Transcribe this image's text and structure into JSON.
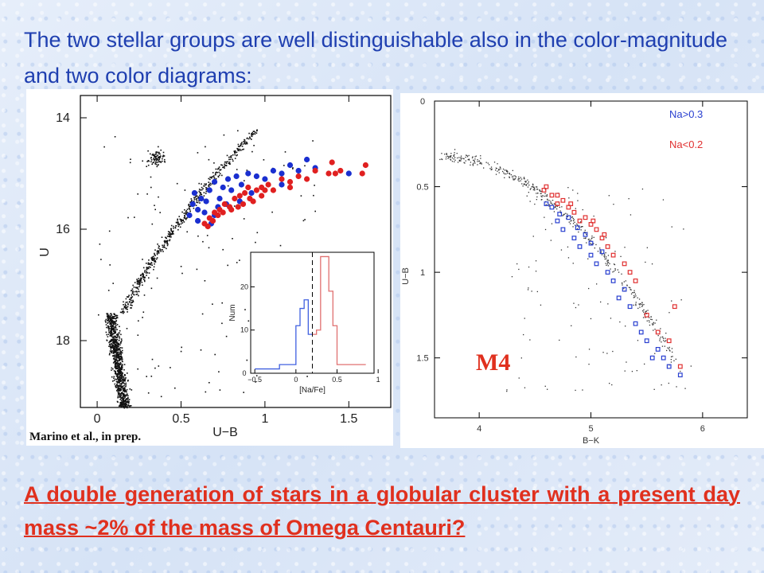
{
  "headline": "The two stellar groups are well distinguishable also in the color-magnitude and two color diagrams:",
  "conclusion": "A double generation of stars in a globular cluster with a present day mass ~2% of the mass of Omega Centauri?",
  "credit": "Marino et al., in prep.",
  "m4_label": "M4",
  "colors": {
    "headline": "#1f3fb0",
    "conclusion": "#e0301e",
    "na_high": "#1a2fd0",
    "na_low": "#e02020"
  },
  "chart_data": [
    {
      "type": "scatter",
      "xlabel": "U−B",
      "ylabel": "U",
      "xlim": [
        -0.1,
        1.75
      ],
      "ylim": [
        19.2,
        13.6
      ],
      "y_inverted": true,
      "xticks": [
        "0",
        "0.5",
        "1",
        "1.5"
      ],
      "yticks": [
        "14",
        "16",
        "18"
      ],
      "series": [
        {
          "name": "",
          "color": "#1a2fd0",
          "points": [
            [
              0.55,
              15.75
            ],
            [
              0.57,
              15.55
            ],
            [
              0.6,
              15.65
            ],
            [
              0.62,
              15.45
            ],
            [
              0.65,
              15.5
            ],
            [
              0.67,
              15.3
            ],
            [
              0.7,
              15.15
            ],
            [
              0.73,
              15.45
            ],
            [
              0.75,
              15.25
            ],
            [
              0.78,
              15.1
            ],
            [
              0.8,
              15.3
            ],
            [
              0.83,
              15.05
            ],
            [
              0.86,
              15.2
            ],
            [
              0.9,
              15.0
            ],
            [
              0.95,
              15.05
            ],
            [
              1.0,
              15.1
            ],
            [
              1.05,
              14.95
            ],
            [
              1.1,
              15.0
            ],
            [
              1.15,
              14.85
            ],
            [
              1.2,
              14.95
            ],
            [
              1.25,
              14.75
            ],
            [
              1.3,
              14.9
            ],
            [
              1.1,
              15.2
            ],
            [
              0.68,
              15.9
            ],
            [
              0.6,
              15.85
            ],
            [
              0.64,
              15.7
            ],
            [
              0.72,
              15.6
            ],
            [
              0.58,
              15.35
            ],
            [
              0.85,
              15.5
            ],
            [
              0.92,
              15.35
            ],
            [
              1.5,
              15.0
            ],
            [
              0.7,
              15.75
            ],
            [
              0.77,
              15.55
            ]
          ]
        },
        {
          "name": "",
          "color": "#e02020",
          "points": [
            [
              0.64,
              15.9
            ],
            [
              0.67,
              15.8
            ],
            [
              0.7,
              15.7
            ],
            [
              0.73,
              15.65
            ],
            [
              0.76,
              15.55
            ],
            [
              0.79,
              15.6
            ],
            [
              0.82,
              15.45
            ],
            [
              0.85,
              15.4
            ],
            [
              0.88,
              15.35
            ],
            [
              0.91,
              15.45
            ],
            [
              0.95,
              15.3
            ],
            [
              0.98,
              15.25
            ],
            [
              1.02,
              15.2
            ],
            [
              1.05,
              15.3
            ],
            [
              1.1,
              15.1
            ],
            [
              1.15,
              15.15
            ],
            [
              1.2,
              15.05
            ],
            [
              1.3,
              14.95
            ],
            [
              1.38,
              15.0
            ],
            [
              1.4,
              14.8
            ],
            [
              1.42,
              15.0
            ],
            [
              1.45,
              14.95
            ],
            [
              1.58,
              15.0
            ],
            [
              1.6,
              14.85
            ],
            [
              0.66,
              15.95
            ],
            [
              0.72,
              15.75
            ],
            [
              0.8,
              15.65
            ],
            [
              0.87,
              15.55
            ],
            [
              0.93,
              15.5
            ],
            [
              0.98,
              15.4
            ],
            [
              1.25,
              15.1
            ],
            [
              0.69,
              15.85
            ],
            [
              0.75,
              15.7
            ],
            [
              0.84,
              15.6
            ],
            [
              0.9,
              15.25
            ],
            [
              1.0,
              15.3
            ],
            [
              1.15,
              15.25
            ]
          ]
        }
      ]
    },
    {
      "type": "histogram",
      "xlabel": "[Na/Fe]",
      "ylabel": "Num",
      "xlim": [
        -0.55,
        0.95
      ],
      "ylim": [
        0,
        28
      ],
      "xticks": [
        "−0.5",
        "0",
        "0.5",
        "1"
      ],
      "yticks": [
        "0",
        "10",
        "20"
      ],
      "divider_x": 0.2,
      "series": [
        {
          "name": "",
          "color": "#4060e0",
          "bins": [
            [
              -0.5,
              1
            ],
            [
              -0.4,
              1
            ],
            [
              -0.3,
              1
            ],
            [
              -0.2,
              2
            ],
            [
              -0.1,
              2
            ],
            [
              0.0,
              11
            ],
            [
              0.05,
              15
            ],
            [
              0.1,
              17
            ],
            [
              0.15,
              9
            ]
          ]
        },
        {
          "name": "",
          "color": "#e07070",
          "bins": [
            [
              0.2,
              9
            ],
            [
              0.25,
              10
            ],
            [
              0.3,
              27
            ],
            [
              0.35,
              27
            ],
            [
              0.4,
              19
            ],
            [
              0.45,
              11
            ],
            [
              0.5,
              2
            ],
            [
              0.6,
              2
            ],
            [
              0.7,
              2
            ],
            [
              0.8,
              2
            ]
          ]
        }
      ]
    },
    {
      "type": "scatter",
      "xlabel": "B−K",
      "ylabel": "U−B",
      "xlim": [
        3.6,
        6.4
      ],
      "ylim": [
        1.85,
        0.0
      ],
      "y_inverted": true,
      "xticks": [
        "4",
        "5",
        "6"
      ],
      "yticks": [
        "0",
        "0.5",
        "1",
        "1.5"
      ],
      "legend": [
        "Na>0.3",
        "Na<0.2"
      ],
      "legend_placement": "top-right",
      "series": [
        {
          "name": "Na>0.3",
          "color": "#2a40d0",
          "points": [
            [
              4.6,
              0.6
            ],
            [
              4.7,
              0.7
            ],
            [
              4.75,
              0.75
            ],
            [
              4.8,
              0.68
            ],
            [
              4.85,
              0.8
            ],
            [
              4.9,
              0.85
            ],
            [
              4.95,
              0.78
            ],
            [
              5.0,
              0.9
            ],
            [
              5.05,
              0.95
            ],
            [
              5.1,
              0.88
            ],
            [
              5.15,
              1.0
            ],
            [
              5.2,
              1.05
            ],
            [
              5.3,
              1.1
            ],
            [
              5.35,
              1.2
            ],
            [
              5.4,
              1.3
            ],
            [
              5.5,
              1.4
            ],
            [
              5.55,
              1.5
            ],
            [
              5.6,
              1.45
            ],
            [
              5.7,
              1.55
            ],
            [
              5.8,
              1.6
            ],
            [
              4.65,
              0.62
            ],
            [
              4.72,
              0.66
            ],
            [
              4.88,
              0.74
            ],
            [
              5.25,
              1.15
            ],
            [
              5.45,
              1.35
            ],
            [
              5.65,
              1.5
            ],
            [
              5.0,
              0.83
            ]
          ]
        },
        {
          "name": "Na<0.2",
          "color": "#e03030",
          "points": [
            [
              4.6,
              0.5
            ],
            [
              4.65,
              0.55
            ],
            [
              4.7,
              0.6
            ],
            [
              4.75,
              0.58
            ],
            [
              4.8,
              0.62
            ],
            [
              4.85,
              0.65
            ],
            [
              4.9,
              0.7
            ],
            [
              4.95,
              0.68
            ],
            [
              5.0,
              0.72
            ],
            [
              5.05,
              0.75
            ],
            [
              5.1,
              0.8
            ],
            [
              5.15,
              0.85
            ],
            [
              5.2,
              0.9
            ],
            [
              5.3,
              0.95
            ],
            [
              5.4,
              1.05
            ],
            [
              5.5,
              1.25
            ],
            [
              5.6,
              1.35
            ],
            [
              5.7,
              1.4
            ],
            [
              5.75,
              1.2
            ],
            [
              5.8,
              1.55
            ],
            [
              4.7,
              0.55
            ],
            [
              4.82,
              0.6
            ],
            [
              5.02,
              0.7
            ],
            [
              5.12,
              0.78
            ],
            [
              5.35,
              1.0
            ],
            [
              4.58,
              0.52
            ]
          ]
        }
      ]
    }
  ]
}
